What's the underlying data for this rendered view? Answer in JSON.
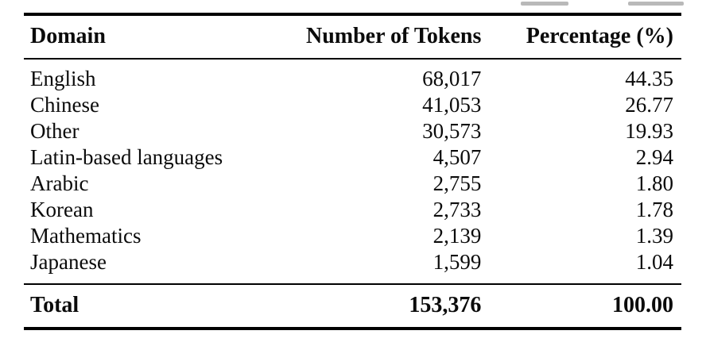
{
  "table": {
    "columns": [
      "Domain",
      "Number of Tokens",
      "Percentage (%)"
    ],
    "rows": [
      [
        "English",
        "68,017",
        "44.35"
      ],
      [
        "Chinese",
        "41,053",
        "26.77"
      ],
      [
        "Other",
        "30,573",
        "19.93"
      ],
      [
        "Latin-based languages",
        "4,507",
        "2.94"
      ],
      [
        "Arabic",
        "2,755",
        "1.80"
      ],
      [
        "Korean",
        "2,733",
        "1.78"
      ],
      [
        "Mathematics",
        "2,139",
        "1.39"
      ],
      [
        "Japanese",
        "1,599",
        "1.04"
      ]
    ],
    "total": [
      "Total",
      "153,376",
      "100.00"
    ]
  },
  "colors": {
    "text": "#0b0b0b",
    "rule": "#000000",
    "background": "#ffffff"
  }
}
